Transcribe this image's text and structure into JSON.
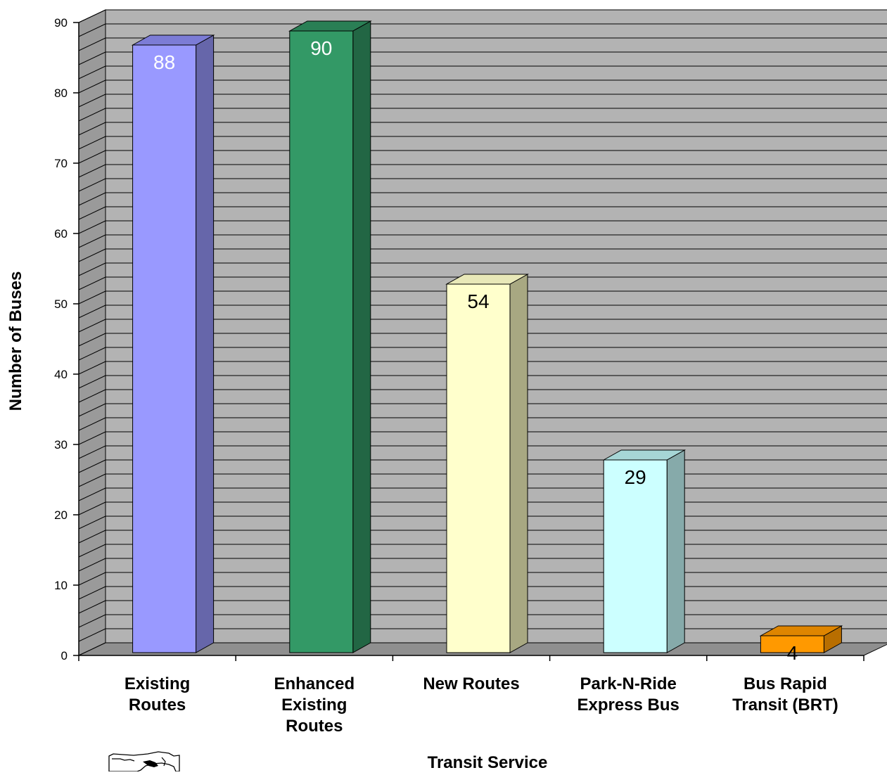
{
  "chart_data": {
    "type": "bar",
    "title": "",
    "xlabel": "Transit Service",
    "ylabel": "Number of Buses",
    "categories": [
      [
        "Existing",
        "Routes"
      ],
      [
        "Enhanced",
        "Existing",
        "Routes"
      ],
      [
        "New Routes"
      ],
      [
        "Park-N-Ride",
        "Express Bus"
      ],
      [
        "Bus Rapid",
        "Transit (BRT)"
      ]
    ],
    "values": [
      88,
      90,
      54,
      29,
      4
    ],
    "ylim": [
      0,
      90
    ],
    "yticks": [
      0,
      10,
      20,
      30,
      40,
      50,
      60,
      70,
      80,
      90
    ],
    "grid": true,
    "three_d": true,
    "colors": {
      "wall": "#b3b3b3",
      "floor": "#8f8f8f",
      "gridline": "#000000",
      "bars": [
        {
          "front": "#9999ff",
          "side": "#6666aa",
          "top": "#7c7cd6",
          "label": "#ffffff"
        },
        {
          "front": "#339966",
          "side": "#226644",
          "top": "#2a7f55",
          "label": "#ffffff"
        },
        {
          "front": "#ffffcc",
          "side": "#a8a882",
          "top": "#e8e8b8",
          "label": "#000000"
        },
        {
          "front": "#ccffff",
          "side": "#86aaaa",
          "top": "#a6d6d6",
          "label": "#000000"
        },
        {
          "front": "#ff9900",
          "side": "#b86e00",
          "top": "#de8500",
          "label": "#000000"
        }
      ]
    }
  }
}
